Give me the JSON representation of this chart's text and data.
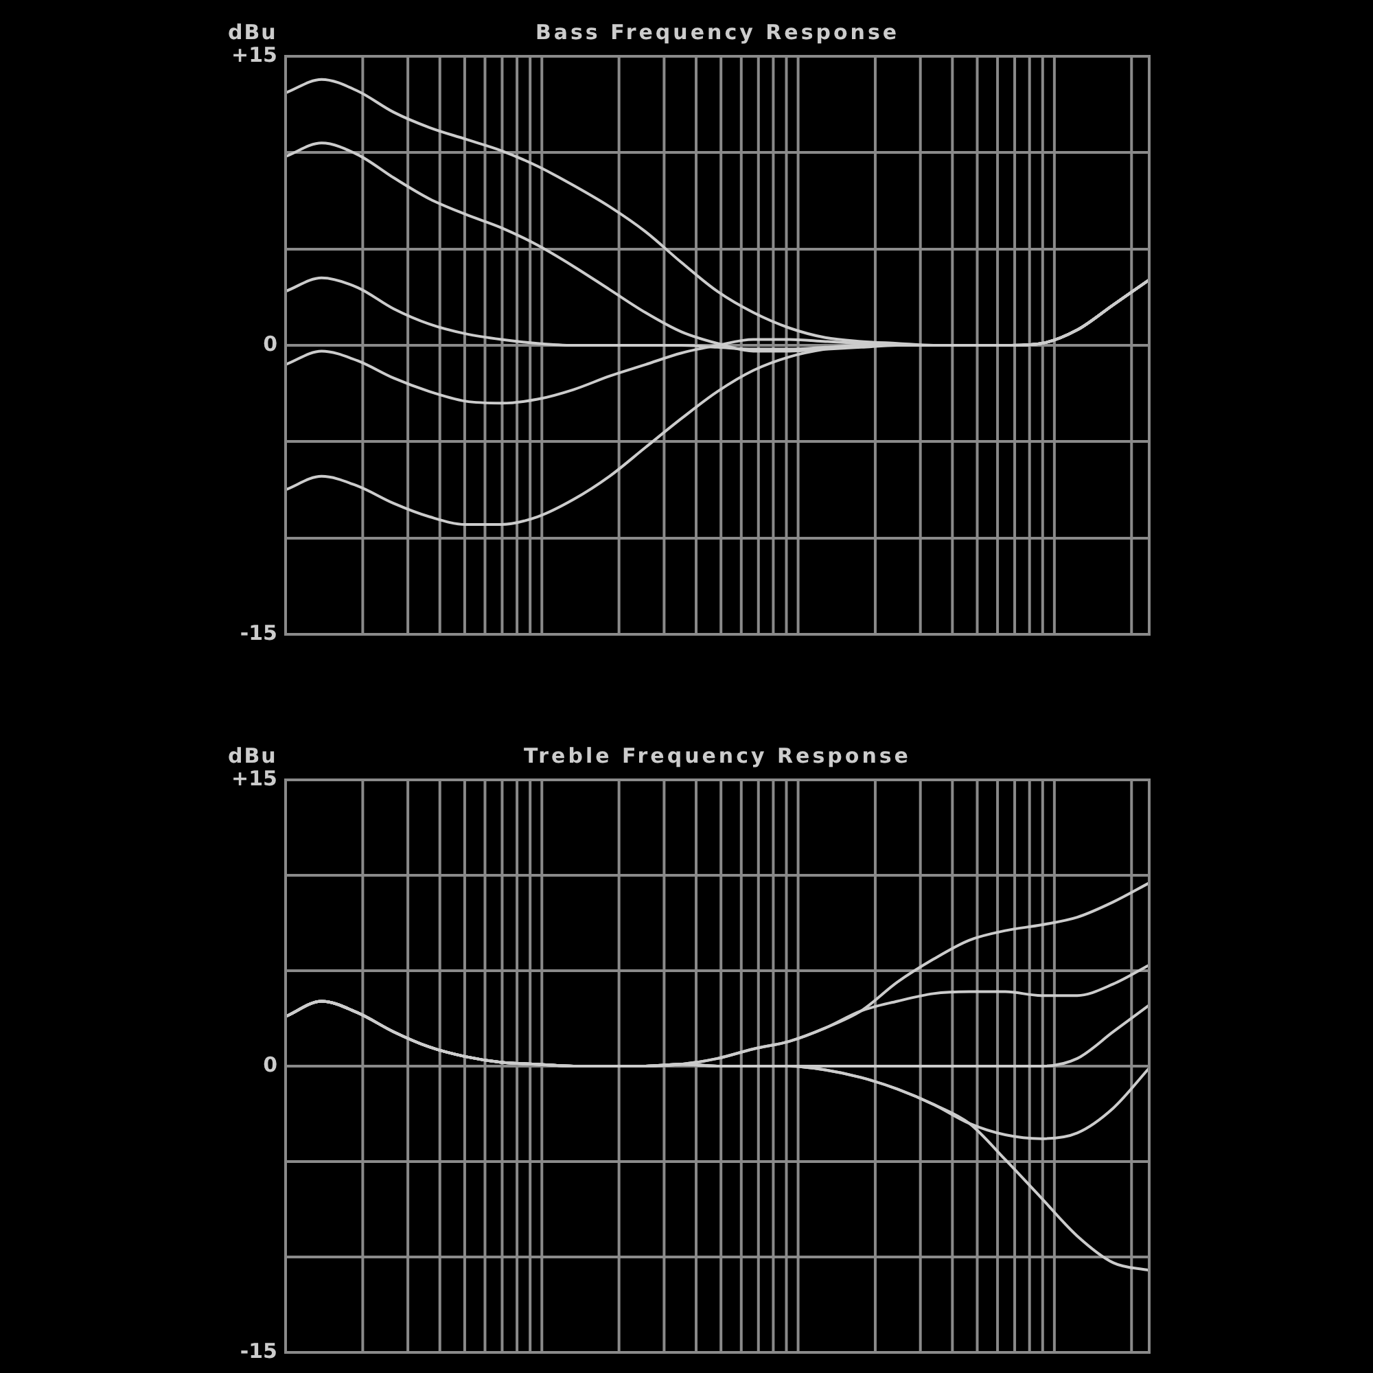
{
  "chart_data": [
    {
      "type": "line",
      "title": "Bass Frequency Response",
      "ylabel": "dBu",
      "grid": true,
      "legend": false,
      "marker": "none",
      "tick_labels": "y",
      "categories": [
        null,
        null,
        null,
        null,
        null,
        null,
        null,
        null,
        null,
        null,
        null,
        null,
        null,
        null,
        null,
        null,
        null,
        null,
        null,
        null,
        null,
        null,
        null,
        null,
        null
      ],
      "ylim": [
        -15,
        15
      ],
      "yticks": [
        {
          "value": 15,
          "label": "+15"
        },
        {
          "value": 10,
          "label": null
        },
        {
          "value": 5,
          "label": null
        },
        {
          "value": 0,
          "label": "0"
        },
        {
          "value": -5,
          "label": null
        },
        {
          "value": -10,
          "label": null
        },
        {
          "value": -15,
          "label": "-15"
        }
      ],
      "series": [
        {
          "color": "#cccccc",
          "values": [
            13.1,
            13.8,
            13.2,
            12.1,
            11.3,
            10.7,
            10.1,
            9.3,
            8.3,
            7.2,
            5.9,
            4.3,
            2.8,
            1.7,
            0.9,
            0.4,
            0.2,
            0.1,
            0,
            0,
            0,
            0.1,
            0.8,
            2.1,
            3.4
          ]
        },
        {
          "color": "#cccccc",
          "values": [
            9.8,
            10.5,
            9.9,
            8.7,
            7.6,
            6.8,
            6.1,
            5.2,
            4.1,
            2.9,
            1.7,
            0.7,
            0.1,
            -0.3,
            -0.3,
            -0.2,
            -0.1,
            0,
            0,
            0,
            0,
            0.1,
            0.8,
            2.1,
            3.4
          ]
        },
        {
          "color": "#cccccc",
          "values": [
            2.8,
            3.5,
            3.0,
            1.9,
            1.1,
            0.6,
            0.3,
            0.1,
            0,
            0,
            0,
            0,
            -0.1,
            -0.2,
            -0.2,
            -0.1,
            0,
            0,
            0,
            0,
            0,
            0.1,
            0.8,
            2.1,
            3.4
          ]
        },
        {
          "color": "#cccccc",
          "values": [
            -1.0,
            -0.3,
            -0.8,
            -1.7,
            -2.4,
            -2.9,
            -3.0,
            -2.8,
            -2.3,
            -1.6,
            -1.0,
            -0.4,
            0,
            0.3,
            0.3,
            0.2,
            0.1,
            0,
            0,
            0,
            0,
            0.1,
            0.8,
            2.1,
            3.4
          ]
        },
        {
          "color": "#cccccc",
          "values": [
            -7.5,
            -6.8,
            -7.3,
            -8.2,
            -8.9,
            -9.3,
            -9.3,
            -8.9,
            -8.0,
            -6.8,
            -5.3,
            -3.8,
            -2.4,
            -1.3,
            -0.6,
            -0.2,
            0,
            0,
            0,
            0,
            0,
            0.1,
            0.8,
            2.1,
            3.4
          ]
        }
      ]
    },
    {
      "type": "line",
      "title": "Treble Frequency Response",
      "ylabel": "dBu",
      "grid": true,
      "legend": false,
      "marker": "none",
      "tick_labels": "y",
      "categories": [
        null,
        null,
        null,
        null,
        null,
        null,
        null,
        null,
        null,
        null,
        null,
        null,
        null,
        null,
        null,
        null,
        null,
        null,
        null,
        null,
        null,
        null,
        null,
        null,
        null
      ],
      "ylim": [
        -15,
        15
      ],
      "yticks": [
        {
          "value": 15,
          "label": "+15"
        },
        {
          "value": 10,
          "label": null
        },
        {
          "value": 5,
          "label": null
        },
        {
          "value": 0,
          "label": "0"
        },
        {
          "value": -5,
          "label": null
        },
        {
          "value": -10,
          "label": null
        },
        {
          "value": -15,
          "label": "-15"
        }
      ],
      "series": [
        {
          "color": "#cccccc",
          "values": [
            2.6,
            3.4,
            2.8,
            1.8,
            1.0,
            0.5,
            0.2,
            0.1,
            0,
            0,
            0,
            0.1,
            0.4,
            0.9,
            1.3,
            2.0,
            2.9,
            4.4,
            5.6,
            6.6,
            7.1,
            7.4,
            7.8,
            8.6,
            9.6
          ]
        },
        {
          "color": "#cccccc",
          "values": [
            2.6,
            3.4,
            2.8,
            1.8,
            1.0,
            0.5,
            0.2,
            0.1,
            0,
            0,
            0,
            0.1,
            0.4,
            0.9,
            1.3,
            2.0,
            2.9,
            3.4,
            3.8,
            3.9,
            3.9,
            3.7,
            3.7,
            4.3,
            5.3
          ]
        },
        {
          "color": "#cccccc",
          "values": [
            2.6,
            3.4,
            2.8,
            1.8,
            1.0,
            0.5,
            0.2,
            0.1,
            0,
            0,
            0,
            0.1,
            0,
            0,
            0,
            0,
            0,
            0,
            0,
            0,
            0,
            0,
            0.4,
            1.8,
            3.2
          ]
        },
        {
          "color": "#cccccc",
          "values": [
            2.6,
            3.4,
            2.8,
            1.8,
            1.0,
            0.5,
            0.2,
            0.1,
            0,
            0,
            0,
            0.1,
            0,
            0,
            0,
            -0.2,
            -0.6,
            -1.2,
            -2.0,
            -3.0,
            -3.6,
            -3.8,
            -3.5,
            -2.2,
            -0.1
          ]
        },
        {
          "color": "#cccccc",
          "values": [
            2.6,
            3.4,
            2.8,
            1.8,
            1.0,
            0.5,
            0.2,
            0.1,
            0,
            0,
            0,
            0.1,
            0,
            0,
            0,
            -0.2,
            -0.6,
            -1.2,
            -2.0,
            -3.0,
            -4.9,
            -6.9,
            -8.9,
            -10.3,
            -10.7
          ]
        }
      ]
    }
  ]
}
